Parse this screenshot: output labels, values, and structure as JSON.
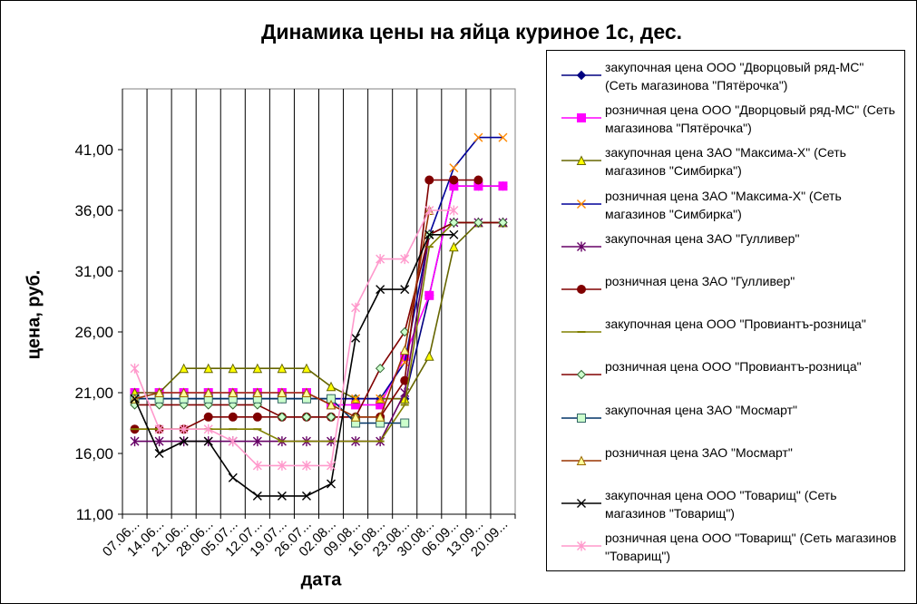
{
  "chart_data": {
    "type": "line",
    "title": "Динамика цены на яйца куриное 1с, дес.",
    "xlabel": "дата",
    "ylabel": "цена, руб.",
    "ylim": [
      11,
      46
    ],
    "yticks": [
      11,
      16,
      21,
      26,
      31,
      36,
      41
    ],
    "ytick_labels": [
      "11,00",
      "16,00",
      "21,00",
      "26,00",
      "31,00",
      "36,00",
      "41,00"
    ],
    "categories": [
      "07.06...",
      "14.06...",
      "21.06...",
      "28.06...",
      "05.07...",
      "12.07...",
      "19.07...",
      "26.07...",
      "02.08...",
      "09.08...",
      "16.08...",
      "23.08...",
      "30.08...",
      "06.09...",
      "13.09...",
      "20.09..."
    ],
    "grid": "vertical",
    "legend_position": "right",
    "series": [
      {
        "name": "закупочная цена ООО \"Дворцовый ряд-МС\" (Сеть магазинова  \"Пятёрочка\")",
        "color": "#000080",
        "marker": "diamond",
        "values": [
          20.5,
          20.5,
          20.5,
          20.5,
          20.5,
          20.5,
          20.5,
          20.5,
          20.5,
          20.5,
          20.5,
          20.5,
          29,
          38,
          38,
          38
        ]
      },
      {
        "name": "розничная цена ООО \"Дворцовый ряд-МС\" (Сеть магазинова  \"Пятёрочка\")",
        "color": "#ff00ff",
        "marker": "square",
        "values": [
          21,
          21,
          21,
          21,
          21,
          21,
          21,
          21,
          20,
          20,
          20,
          24,
          29,
          38,
          38,
          38
        ]
      },
      {
        "name": "закупочная цена ЗАО \"Максима-Х\"  (Сеть магазинов \"Симбирка\")",
        "color": "#666600",
        "marker": "triangle",
        "markerFill": "#ffff00",
        "values": [
          21,
          21,
          23,
          23,
          23,
          23,
          23,
          23,
          21.5,
          20.5,
          20.5,
          20.5,
          24,
          33,
          35,
          35
        ]
      },
      {
        "name": "розничная цена ЗАО \"Максима-Х\"  (Сеть магазинов \"Симбирка\")",
        "color": "#000099",
        "marker": "x",
        "markerColor": "#ff8800",
        "values": [
          20.5,
          20.5,
          20.5,
          20.5,
          20.5,
          20.5,
          20.5,
          20.5,
          20.5,
          20.5,
          20.5,
          23.5,
          34,
          39.5,
          42,
          42
        ]
      },
      {
        "name": "закупочная цена ЗАО \"Гулливер\"",
        "color": "#660066",
        "marker": "star",
        "values": [
          17,
          17,
          17,
          17,
          17,
          17,
          17,
          17,
          17,
          17,
          17,
          21,
          34,
          35,
          35,
          35
        ]
      },
      {
        "name": "розничная цена ЗАО \"Гулливер\"",
        "color": "#800000",
        "marker": "circle",
        "values": [
          18,
          18,
          18,
          19,
          19,
          19,
          19,
          19,
          19,
          19,
          19,
          22,
          38.5,
          38.5,
          38.5,
          null
        ]
      },
      {
        "name": "закупочная цена ООО \"Провиантъ-розница\"",
        "color": "#808000",
        "marker": "dash",
        "values": [
          18,
          18,
          18,
          18,
          18,
          18,
          17,
          17,
          17,
          17,
          17,
          20,
          33,
          35,
          35,
          35
        ]
      },
      {
        "name": "розничная цена ООО \"Провиантъ-розница\"",
        "color": "#800000",
        "marker": "diamond",
        "markerFill": "#ccffcc",
        "markerColor": "#336633",
        "values": [
          20,
          20,
          20,
          20,
          20,
          20,
          19,
          19,
          19,
          19,
          23,
          26,
          34,
          35,
          35,
          35
        ]
      },
      {
        "name": "закупочная цена ЗАО \"Мосмарт\"",
        "color": "#003366",
        "marker": "square",
        "markerFill": "#ccffcc",
        "markerColor": "#336666",
        "values": [
          20.5,
          20.5,
          20.5,
          20.5,
          20.5,
          20.5,
          20.5,
          20.5,
          20.5,
          18.5,
          18.5,
          18.5,
          null,
          null,
          null,
          null
        ]
      },
      {
        "name": "розничная цена ЗАО \"Мосмарт\"",
        "color": "#993300",
        "marker": "triangle",
        "markerFill": "#ffff99",
        "markerColor": "#996600",
        "values": [
          20.5,
          21,
          21,
          21,
          21,
          21,
          21,
          21,
          20,
          19,
          19,
          24.5,
          36,
          null,
          null,
          null
        ]
      },
      {
        "name": "закупочная цена ООО \"Товарищ\"  (Сеть магазинов \"Товарищ\")",
        "color": "#000000",
        "marker": "x",
        "values": [
          20.5,
          16,
          17,
          17,
          14,
          12.5,
          12.5,
          12.5,
          13.5,
          25.5,
          29.5,
          29.5,
          34,
          34,
          null,
          null
        ]
      },
      {
        "name": "розничная цена ООО \"Товарищ\"  (Сеть магазинов \"Товарищ\")",
        "color": "#ff99cc",
        "marker": "star",
        "values": [
          23,
          18,
          18,
          18,
          17,
          15,
          15,
          15,
          15,
          28,
          32,
          32,
          36,
          36,
          null,
          null
        ]
      }
    ]
  }
}
